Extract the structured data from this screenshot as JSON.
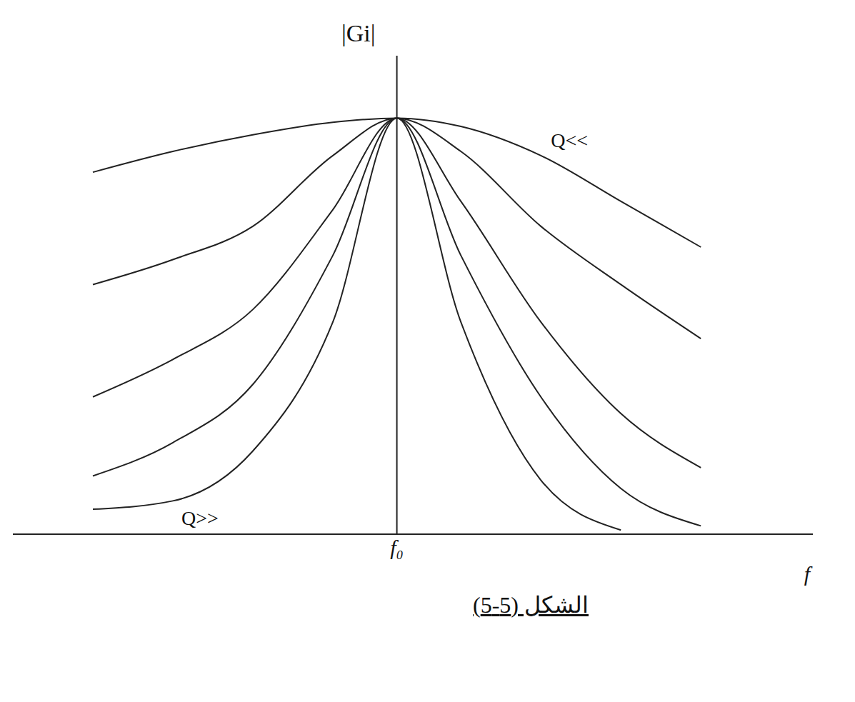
{
  "chart_data": {
    "type": "line",
    "x_label": "f",
    "y_label": "|Gi|",
    "caption": "الشكل (5-5)",
    "x": [
      1,
      2,
      3,
      4,
      4.8,
      5.6,
      6.6,
      7.6,
      8.6
    ],
    "series": [
      {
        "name": "Q<<",
        "color": "#222222",
        "values": [
          0.87,
          0.92,
          0.96,
          0.99,
          1.0,
          0.98,
          0.91,
          0.8,
          0.69
        ]
      },
      {
        "color": "#222222",
        "values": [
          0.6,
          0.66,
          0.74,
          0.91,
          1.0,
          0.92,
          0.74,
          0.6,
          0.47
        ]
      },
      {
        "color": "#222222",
        "values": [
          0.33,
          0.42,
          0.54,
          0.78,
          1.0,
          0.8,
          0.51,
          0.29,
          0.16
        ]
      },
      {
        "color": "#222222",
        "values": [
          0.14,
          0.22,
          0.36,
          0.67,
          1.0,
          0.67,
          0.33,
          0.11,
          0.02
        ]
      },
      {
        "name": "Q>>",
        "color": "#222222",
        "values": [
          0.06,
          0.08,
          0.2,
          0.51,
          1.0,
          0.51,
          0.13,
          0.01,
          null
        ]
      }
    ],
    "xlim": [
      0,
      10
    ],
    "ylim": [
      0,
      1.15
    ],
    "xticks": [
      {
        "value": 4.8,
        "label": "f₀"
      }
    ],
    "yticks": [],
    "tick_labels": "x",
    "grid": false
  }
}
